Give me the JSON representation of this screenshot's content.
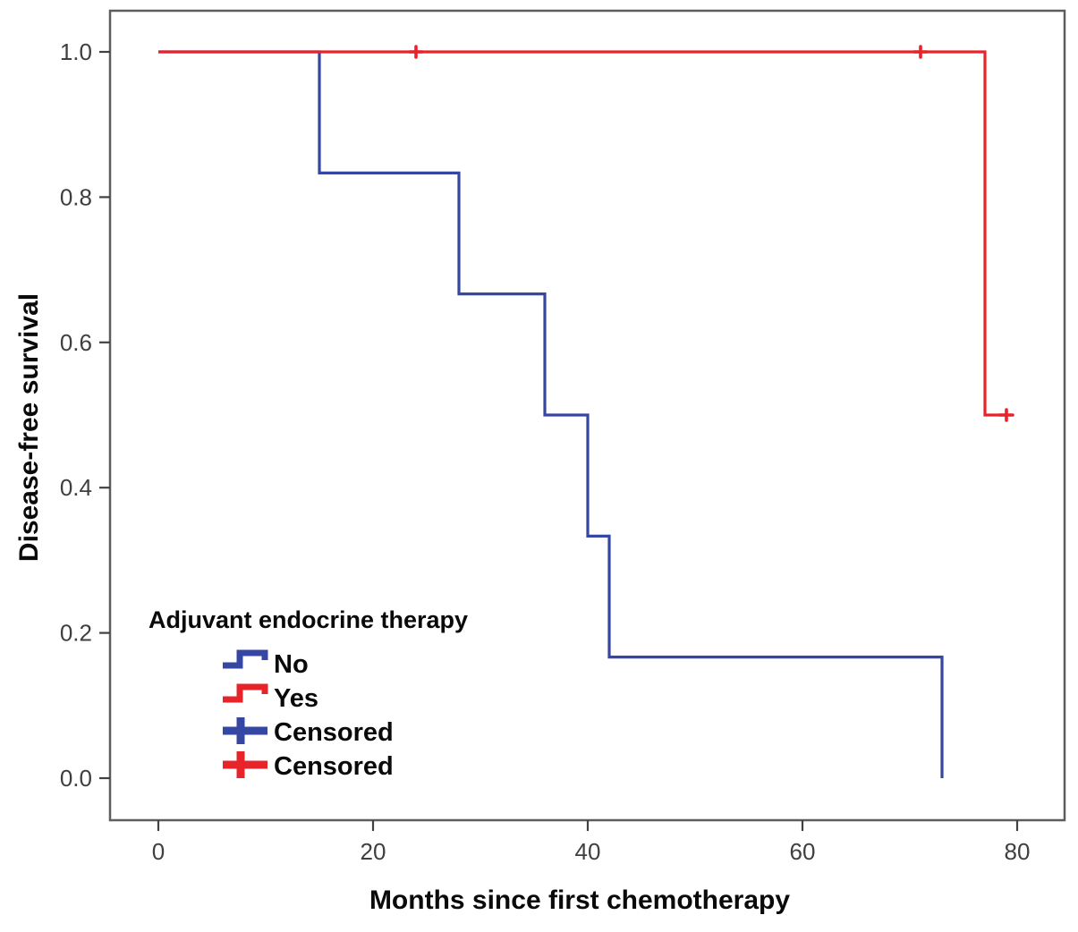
{
  "chart_data": {
    "type": "line",
    "subtype": "kaplan-meier-step",
    "title": "",
    "xlabel": "Months since first chemotherapy",
    "ylabel": "Disease-free survival",
    "xlim": [
      0,
      84
    ],
    "ylim": [
      0,
      1.05
    ],
    "grid": false,
    "x_ticks": [
      {
        "v": 0,
        "label": "0"
      },
      {
        "v": 20,
        "label": "20"
      },
      {
        "v": 40,
        "label": "40"
      },
      {
        "v": 60,
        "label": "60"
      },
      {
        "v": 80,
        "label": "80"
      }
    ],
    "y_ticks": [
      {
        "v": 0.0,
        "label": "0.0"
      },
      {
        "v": 0.2,
        "label": "0.2"
      },
      {
        "v": 0.4,
        "label": "0.4"
      },
      {
        "v": 0.6,
        "label": "0.6"
      },
      {
        "v": 0.8,
        "label": "0.8"
      },
      {
        "v": 1.0,
        "label": "1.0"
      }
    ],
    "series": [
      {
        "name": "No",
        "color": "#3647a3",
        "points": [
          [
            0,
            1.0
          ],
          [
            15,
            1.0
          ],
          [
            15,
            0.8333
          ],
          [
            28,
            0.8333
          ],
          [
            28,
            0.6667
          ],
          [
            36,
            0.6667
          ],
          [
            36,
            0.5
          ],
          [
            40,
            0.5
          ],
          [
            40,
            0.3333
          ],
          [
            42,
            0.3333
          ],
          [
            42,
            0.1667
          ],
          [
            73,
            0.1667
          ],
          [
            73,
            0.0
          ]
        ],
        "event_months": [
          15,
          28,
          36,
          40,
          42,
          73
        ],
        "censored": []
      },
      {
        "name": "Yes",
        "color": "#e8242b",
        "points": [
          [
            0,
            1.0
          ],
          [
            77,
            1.0
          ],
          [
            77,
            0.5
          ],
          [
            79,
            0.5
          ]
        ],
        "event_months": [
          77
        ],
        "censored": [
          [
            24,
            1.0
          ],
          [
            71,
            1.0
          ],
          [
            79,
            0.5
          ]
        ]
      }
    ],
    "legend": {
      "title": "Adjuvant endocrine therapy",
      "position": "inside-lower-left",
      "items": [
        {
          "label": "No",
          "marker": "step",
          "color": "#3647a3"
        },
        {
          "label": "Yes",
          "marker": "step",
          "color": "#e8242b"
        },
        {
          "label": "Censored",
          "marker": "plus",
          "color": "#3647a3"
        },
        {
          "label": "Censored",
          "marker": "plus",
          "color": "#e8242b"
        }
      ]
    }
  },
  "colors": {
    "no_group_blue": "#3647a3",
    "yes_group_red": "#e8242b",
    "frame_gray": "#5d5d5f",
    "tick_text": "#3f3f41",
    "label_text": "#0a0a0a"
  }
}
